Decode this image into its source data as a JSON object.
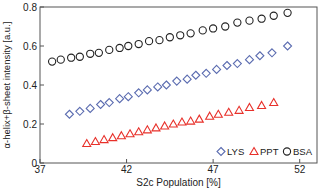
{
  "chart_data": {
    "type": "scatter",
    "x_label": "S2c Population [%]",
    "y_label": "α-helix+β-sheet intensity [a.u.]",
    "xlim": [
      37,
      53
    ],
    "xticks": [
      37,
      42,
      47,
      52
    ],
    "ylim": [
      0,
      0.8
    ],
    "yticks": [
      0,
      0.2,
      0.4,
      0.6,
      0.8
    ],
    "grid": false,
    "legend": "lower right",
    "series": [
      {
        "name": "LYS",
        "color": "#5b6cb0",
        "marker": "diamond",
        "x": [
          38.7,
          39.3,
          39.9,
          40.5,
          41.0,
          41.6,
          42.1,
          42.7,
          43.2,
          43.8,
          44.3,
          44.9,
          45.5,
          46.0,
          46.6,
          47.2,
          47.8,
          48.4,
          49.1,
          49.7,
          50.4,
          51.3
        ],
        "values": [
          0.25,
          0.265,
          0.28,
          0.3,
          0.31,
          0.33,
          0.34,
          0.36,
          0.375,
          0.39,
          0.4,
          0.42,
          0.43,
          0.45,
          0.46,
          0.48,
          0.5,
          0.51,
          0.53,
          0.55,
          0.565,
          0.6
        ]
      },
      {
        "name": "PPT",
        "color": "#e8302a",
        "marker": "triangle",
        "x": [
          39.7,
          40.2,
          40.7,
          41.2,
          41.7,
          42.2,
          42.7,
          43.2,
          43.7,
          44.2,
          44.7,
          45.2,
          45.7,
          46.2,
          46.8,
          47.3,
          47.9,
          48.5,
          49.1,
          49.8,
          50.5
        ],
        "values": [
          0.1,
          0.11,
          0.12,
          0.13,
          0.14,
          0.15,
          0.16,
          0.17,
          0.18,
          0.19,
          0.2,
          0.21,
          0.215,
          0.225,
          0.24,
          0.25,
          0.26,
          0.27,
          0.285,
          0.295,
          0.31
        ]
      },
      {
        "name": "BSA",
        "color": "#222222",
        "marker": "circle",
        "x": [
          37.7,
          38.2,
          38.8,
          39.3,
          39.9,
          40.4,
          41.0,
          41.6,
          42.1,
          42.7,
          43.3,
          43.9,
          44.5,
          45.1,
          45.7,
          46.4,
          47.0,
          47.7,
          48.4,
          49.1,
          49.8,
          50.5,
          51.3
        ],
        "values": [
          0.52,
          0.53,
          0.54,
          0.545,
          0.56,
          0.565,
          0.58,
          0.59,
          0.6,
          0.61,
          0.625,
          0.63,
          0.645,
          0.655,
          0.665,
          0.68,
          0.69,
          0.7,
          0.72,
          0.73,
          0.74,
          0.755,
          0.77
        ]
      }
    ]
  }
}
